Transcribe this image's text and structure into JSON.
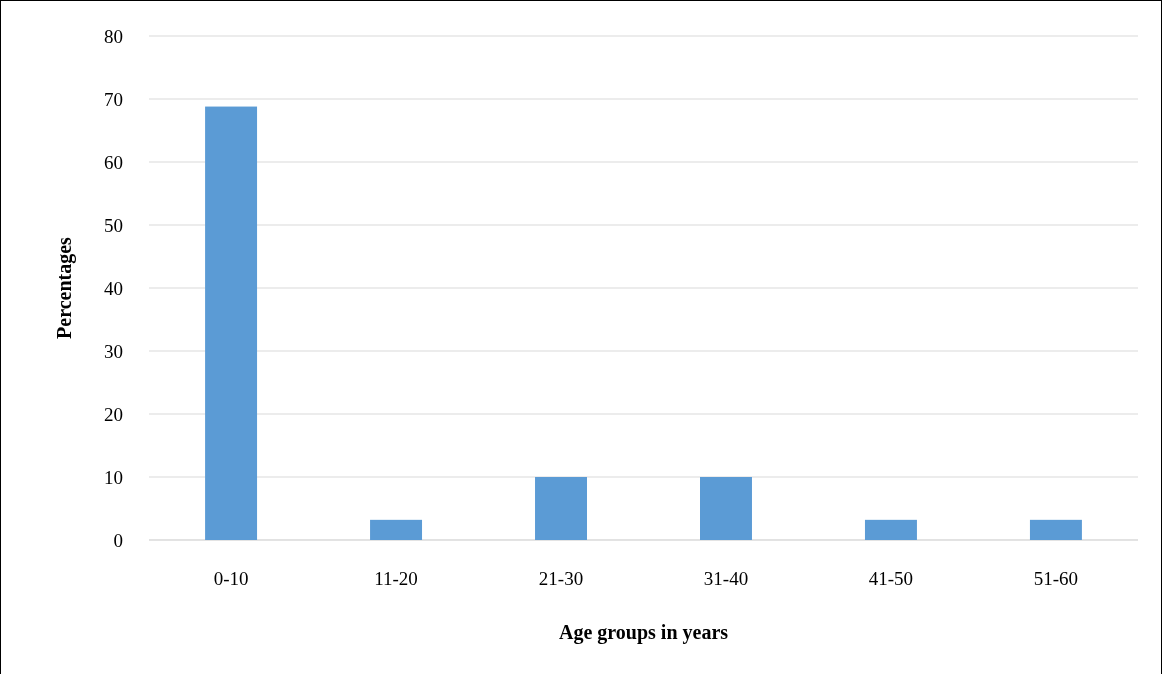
{
  "chart_data": {
    "type": "bar",
    "xlabel": "Age groups in years",
    "ylabel": "Percentages",
    "categories": [
      "0-10",
      "11-20",
      "21-30",
      "31-40",
      "41-50",
      "51-60"
    ],
    "values": [
      68.8,
      3.2,
      10,
      10,
      3.2,
      3.2
    ],
    "color": "#5b9bd5",
    "ylim": [
      0,
      80
    ],
    "yticks": [
      0,
      10,
      20,
      30,
      40,
      50,
      60,
      70,
      80
    ],
    "grid": "y"
  }
}
